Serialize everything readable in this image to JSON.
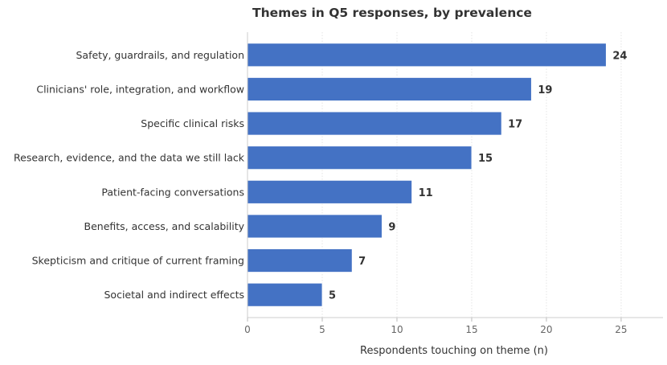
{
  "chart_data": {
    "type": "bar",
    "orientation": "horizontal",
    "title": "Themes in Q5 responses, by prevalence",
    "xlabel": "Respondents touching on theme (n)",
    "ylabel": "",
    "categories": [
      "Safety, guardrails, and regulation",
      "Clinicians' role, integration, and workflow",
      "Specific clinical risks",
      "Research, evidence, and the data we still lack",
      "Patient-facing conversations",
      "Benefits, access, and scalability",
      "Skepticism and critique of current framing",
      "Societal and indirect effects"
    ],
    "values": [
      24,
      19,
      17,
      15,
      11,
      9,
      7,
      5
    ],
    "xlim": [
      0,
      27.8
    ],
    "xticks": [
      0,
      5,
      10,
      15,
      20,
      25
    ],
    "grid": "x, dotted",
    "data_labels": true,
    "bar_color": "#4472C4"
  }
}
